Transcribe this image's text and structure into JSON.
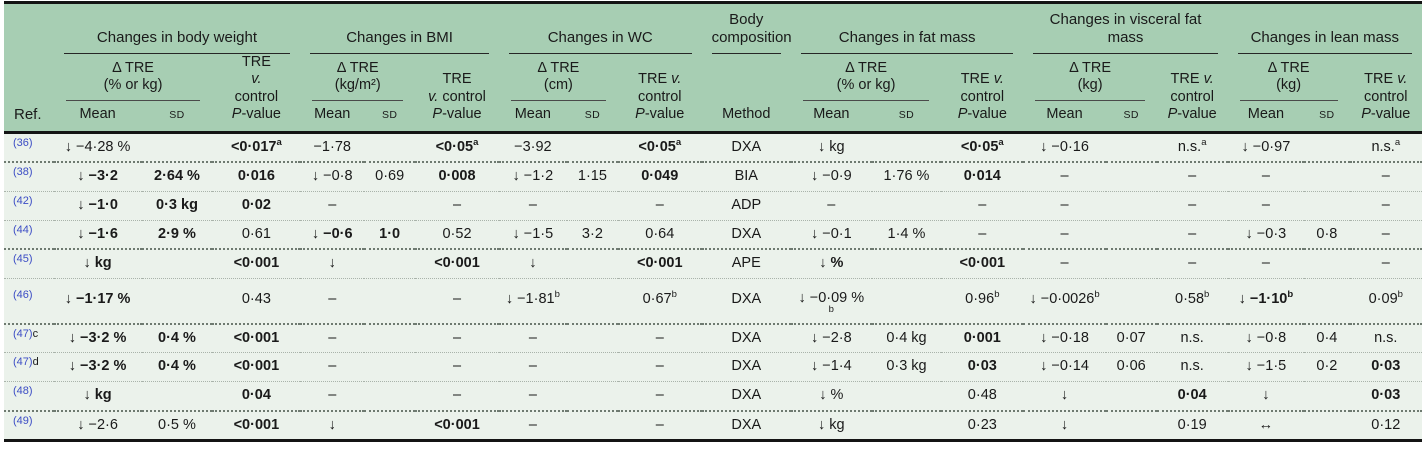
{
  "colors": {
    "header_bg": "#a7ceb3",
    "body_bg": "#ebf2eb",
    "rule": "#141414",
    "ref_link_blue": "#3c4dc5",
    "text": "#1a1a1a"
  },
  "header": {
    "ref": "Ref.",
    "mean": "Mean",
    "sd": "SD",
    "body_comp": {
      "title": "Body\ncomposition",
      "method": "Method"
    },
    "groups": [
      {
        "title": "Changes in body weight",
        "delta": "Δ TRE\n(% or kg)",
        "p": "TRE\nv.\ncontrol\nP-value"
      },
      {
        "title": "Changes in BMI",
        "delta": "Δ TRE\n(kg/m²)",
        "p": "TRE\nv. control\nP-value"
      },
      {
        "title": "Changes in WC",
        "delta": "Δ TRE\n(cm)",
        "p": "TRE v.\ncontrol\nP-value"
      },
      {
        "title": "Changes in fat mass",
        "delta": "Δ TRE\n(% or kg)",
        "p": "TRE v.\ncontrol\nP-value"
      },
      {
        "title": "Changes in visceral fat mass",
        "delta": "Δ TRE\n(kg)",
        "p": "TRE v.\ncontrol\nP-value"
      },
      {
        "title": "Changes in lean mass",
        "delta": "Δ TRE\n(kg)",
        "p": "TRE v.\ncontrol\nP-value"
      }
    ]
  },
  "rows": [
    {
      "ref": "(36)",
      "suffix": "",
      "sep": "",
      "tall": false,
      "cells": [
        {
          "t": "↓ −4·28 %"
        },
        {
          "t": ""
        },
        {
          "t": "<0·017",
          "b": 1,
          "s": "a"
        },
        {
          "t": "−1·78"
        },
        {
          "t": ""
        },
        {
          "t": "<0·05",
          "b": 1,
          "s": "a"
        },
        {
          "t": "−3·92"
        },
        {
          "t": ""
        },
        {
          "t": "<0·05",
          "b": 1,
          "s": "a"
        },
        {
          "t": "DXA"
        },
        {
          "t": "↓ kg"
        },
        {
          "t": ""
        },
        {
          "t": "<0·05",
          "b": 1,
          "s": "a"
        },
        {
          "t": "↓ −0·16"
        },
        {
          "t": ""
        },
        {
          "t": "n.s.",
          "s": "a"
        },
        {
          "t": "↓ −0·97"
        },
        {
          "t": ""
        },
        {
          "t": "n.s.",
          "s": "a"
        }
      ]
    },
    {
      "ref": "(38)",
      "suffix": "",
      "sep": "heavy",
      "tall": false,
      "cells": [
        {
          "t": "↓ −3·2",
          "b": 1
        },
        {
          "t": "2·64 %",
          "b": 1
        },
        {
          "t": "0·016",
          "b": 1
        },
        {
          "t": "↓ −0·8"
        },
        {
          "t": "0·69"
        },
        {
          "t": "0·008",
          "b": 1
        },
        {
          "t": "↓ −1·2"
        },
        {
          "t": "1·15"
        },
        {
          "t": "0·049",
          "b": 1
        },
        {
          "t": "BIA"
        },
        {
          "t": "↓ −0·9"
        },
        {
          "t": "1·76 %"
        },
        {
          "t": "0·014",
          "b": 1
        },
        {
          "t": "–"
        },
        {
          "t": ""
        },
        {
          "t": "–"
        },
        {
          "t": "–"
        },
        {
          "t": ""
        },
        {
          "t": "–"
        }
      ]
    },
    {
      "ref": "(42)",
      "suffix": "",
      "sep": "light",
      "tall": false,
      "cells": [
        {
          "t": "↓ −1·0",
          "b": 1
        },
        {
          "t": "0·3 kg",
          "b": 1
        },
        {
          "t": "0·02",
          "b": 1
        },
        {
          "t": "–"
        },
        {
          "t": ""
        },
        {
          "t": "–"
        },
        {
          "t": "–"
        },
        {
          "t": ""
        },
        {
          "t": "–"
        },
        {
          "t": "ADP"
        },
        {
          "t": "–"
        },
        {
          "t": ""
        },
        {
          "t": "–"
        },
        {
          "t": "–"
        },
        {
          "t": ""
        },
        {
          "t": "–"
        },
        {
          "t": "–"
        },
        {
          "t": ""
        },
        {
          "t": "–"
        }
      ]
    },
    {
      "ref": "(44)",
      "suffix": "",
      "sep": "light",
      "tall": false,
      "cells": [
        {
          "t": "↓ −1·6",
          "b": 1
        },
        {
          "t": "2·9 %",
          "b": 1
        },
        {
          "t": "0·61"
        },
        {
          "t": "↓ −0·6",
          "b": 1
        },
        {
          "t": "1·0",
          "b": 1
        },
        {
          "t": "0·52"
        },
        {
          "t": "↓ −1·5"
        },
        {
          "t": "3·2"
        },
        {
          "t": "0·64"
        },
        {
          "t": "DXA"
        },
        {
          "t": "↓ −0·1"
        },
        {
          "t": "1·4 %"
        },
        {
          "t": "–"
        },
        {
          "t": "–"
        },
        {
          "t": ""
        },
        {
          "t": "–"
        },
        {
          "t": "↓ −0·3"
        },
        {
          "t": "0·8"
        },
        {
          "t": "–"
        }
      ]
    },
    {
      "ref": "(45)",
      "suffix": "",
      "sep": "heavy",
      "tall": false,
      "cells": [
        {
          "t": "↓ kg",
          "b": 1
        },
        {
          "t": ""
        },
        {
          "t": "<0·001",
          "b": 1
        },
        {
          "t": "↓"
        },
        {
          "t": ""
        },
        {
          "t": "<0·001",
          "b": 1
        },
        {
          "t": "↓"
        },
        {
          "t": ""
        },
        {
          "t": "<0·001",
          "b": 1
        },
        {
          "t": "APE"
        },
        {
          "t": "↓ %",
          "b": 1
        },
        {
          "t": ""
        },
        {
          "t": "<0·001",
          "b": 1
        },
        {
          "t": "–"
        },
        {
          "t": ""
        },
        {
          "t": "–"
        },
        {
          "t": "–"
        },
        {
          "t": ""
        },
        {
          "t": "–"
        }
      ]
    },
    {
      "ref": "(46)",
      "suffix": "",
      "sep": "light",
      "tall": true,
      "cells": [
        {
          "t": "↓ −1·17 %",
          "b": 1
        },
        {
          "t": ""
        },
        {
          "t": "0·43"
        },
        {
          "t": "–"
        },
        {
          "t": ""
        },
        {
          "t": "–"
        },
        {
          "t": "↓ −1·81",
          "s": "b"
        },
        {
          "t": ""
        },
        {
          "t": "0·67",
          "s": "b"
        },
        {
          "t": "DXA"
        },
        {
          "t": "↓ −0·09 %",
          "s": "b",
          "wrap": 1
        },
        {
          "t": ""
        },
        {
          "t": "0·96",
          "s": "b"
        },
        {
          "t": "↓ −0·0026",
          "s": "b"
        },
        {
          "t": ""
        },
        {
          "t": "0·58",
          "s": "b"
        },
        {
          "t": "↓ −1·10",
          "b": 1,
          "s": "b"
        },
        {
          "t": ""
        },
        {
          "t": "0·09",
          "s": "b"
        }
      ]
    },
    {
      "ref": "(47)",
      "suffix": "c",
      "sep": "heavy",
      "tall": false,
      "cells": [
        {
          "t": "↓ −3·2 %",
          "b": 1
        },
        {
          "t": "0·4 %",
          "b": 1
        },
        {
          "t": "<0·001",
          "b": 1
        },
        {
          "t": "–"
        },
        {
          "t": ""
        },
        {
          "t": "–"
        },
        {
          "t": "–"
        },
        {
          "t": ""
        },
        {
          "t": "–"
        },
        {
          "t": "DXA"
        },
        {
          "t": "↓ −2·8"
        },
        {
          "t": "0·4 kg"
        },
        {
          "t": "0·001",
          "b": 1
        },
        {
          "t": "↓ −0·18"
        },
        {
          "t": "0·07"
        },
        {
          "t": "n.s."
        },
        {
          "t": "↓ −0·8"
        },
        {
          "t": "0·4"
        },
        {
          "t": "n.s."
        }
      ]
    },
    {
      "ref": "(47)",
      "suffix": "d",
      "sep": "light",
      "tall": false,
      "cells": [
        {
          "t": "↓ −3·2 %",
          "b": 1
        },
        {
          "t": "0·4 %",
          "b": 1
        },
        {
          "t": "<0·001",
          "b": 1
        },
        {
          "t": "–"
        },
        {
          "t": ""
        },
        {
          "t": "–"
        },
        {
          "t": "–"
        },
        {
          "t": ""
        },
        {
          "t": "–"
        },
        {
          "t": "DXA"
        },
        {
          "t": "↓ −1·4"
        },
        {
          "t": "0·3 kg"
        },
        {
          "t": "0·03",
          "b": 1
        },
        {
          "t": "↓ −0·14"
        },
        {
          "t": "0·06"
        },
        {
          "t": "n.s."
        },
        {
          "t": "↓ −1·5"
        },
        {
          "t": "0·2"
        },
        {
          "t": "0·03",
          "b": 1
        }
      ]
    },
    {
      "ref": "(48)",
      "suffix": "",
      "sep": "light",
      "tall": false,
      "cells": [
        {
          "t": "↓ kg",
          "b": 1
        },
        {
          "t": ""
        },
        {
          "t": "0·04",
          "b": 1
        },
        {
          "t": "–"
        },
        {
          "t": ""
        },
        {
          "t": "–"
        },
        {
          "t": "–"
        },
        {
          "t": ""
        },
        {
          "t": "–"
        },
        {
          "t": "DXA"
        },
        {
          "t": "↓ %"
        },
        {
          "t": ""
        },
        {
          "t": "0·48"
        },
        {
          "t": "↓"
        },
        {
          "t": ""
        },
        {
          "t": "0·04",
          "b": 1
        },
        {
          "t": "↓"
        },
        {
          "t": ""
        },
        {
          "t": "0·03",
          "b": 1
        }
      ]
    },
    {
      "ref": "(49)",
      "suffix": "",
      "sep": "heavy",
      "tall": false,
      "cells": [
        {
          "t": "↓ −2·6"
        },
        {
          "t": "0·5 %"
        },
        {
          "t": "<0·001",
          "b": 1
        },
        {
          "t": "↓"
        },
        {
          "t": ""
        },
        {
          "t": "<0·001",
          "b": 1
        },
        {
          "t": "–"
        },
        {
          "t": ""
        },
        {
          "t": "–"
        },
        {
          "t": "DXA"
        },
        {
          "t": "↓ kg"
        },
        {
          "t": ""
        },
        {
          "t": "0·23"
        },
        {
          "t": "↓"
        },
        {
          "t": ""
        },
        {
          "t": "0·19"
        },
        {
          "t": "↔"
        },
        {
          "t": ""
        },
        {
          "t": "0·12"
        }
      ]
    }
  ]
}
